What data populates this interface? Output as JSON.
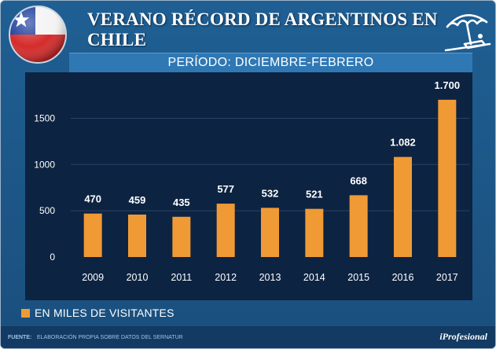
{
  "header": {
    "title": "VERANO RÉCORD DE ARGENTINOS EN CHILE",
    "subtitle": "PERÍODO: DICIEMBRE-FEBRERO"
  },
  "icons": {
    "flag": "chile-flag-icon",
    "beach": "beach-umbrella-icon"
  },
  "colors": {
    "bar": "#ef9a35",
    "background": "#1a4f7d",
    "plot": "#0d2342"
  },
  "legend": {
    "label": "EN MILES DE VISITANTES"
  },
  "footer": {
    "source_key": "FUENTE:",
    "source_text": "ELABORACIÓN PROPIA SOBRE DATOS DEL SERNATUR",
    "brand": "iProfesional"
  },
  "chart_data": {
    "type": "bar",
    "title": "VERANO RÉCORD DE ARGENTINOS EN CHILE",
    "subtitle": "PERÍODO: DICIEMBRE-FEBRERO",
    "categories": [
      "2009",
      "2010",
      "2011",
      "2012",
      "2013",
      "2014",
      "2015",
      "2016",
      "2017"
    ],
    "values": [
      470,
      459,
      435,
      577,
      532,
      521,
      668,
      1082,
      1700
    ],
    "value_labels": [
      "470",
      "459",
      "435",
      "577",
      "532",
      "521",
      "668",
      "1.082",
      "1.700"
    ],
    "yticks": [
      0,
      500,
      1000,
      1500
    ],
    "ytick_labels": [
      "0",
      "500",
      "1000",
      "1500"
    ],
    "ylim": [
      0,
      1700
    ],
    "xlabel": "",
    "ylabel": "",
    "legend": "EN MILES DE VISITANTES",
    "grid": true
  }
}
